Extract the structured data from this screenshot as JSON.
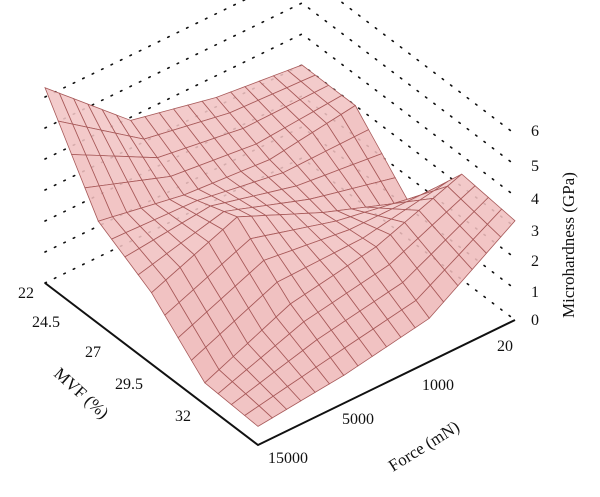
{
  "chart_data": {
    "type": "surface3d",
    "zlabel": "Microhardness (GPa)",
    "xlabel": "Force (mN)",
    "ylabel": "MVF (%)",
    "force_ticks": [
      "20",
      "1000",
      "5000",
      "15000"
    ],
    "mvf_ticks": [
      "22",
      "24.5",
      "27",
      "29.5",
      "32"
    ],
    "z_ticks": [
      "0",
      "1",
      "2",
      "3",
      "4",
      "5",
      "6"
    ],
    "zlim": [
      0,
      6
    ],
    "grid": "dotted back panes",
    "surface_color": "#f2b8b8",
    "edge_color": "#a85a5a",
    "mvf": [
      22,
      24.5,
      27,
      29.5,
      32
    ],
    "force": [
      20,
      1000,
      5000,
      15000
    ],
    "hardness": [
      [
        3.0,
        3.3,
        3.9,
        6.3
      ],
      [
        3.0,
        2.6,
        2.8,
        3.3
      ],
      [
        1.2,
        2.2,
        3.4,
        2.3
      ],
      [
        3.4,
        2.4,
        1.9,
        0.7
      ],
      [
        3.2,
        1.4,
        0.9,
        0.6
      ]
    ]
  }
}
